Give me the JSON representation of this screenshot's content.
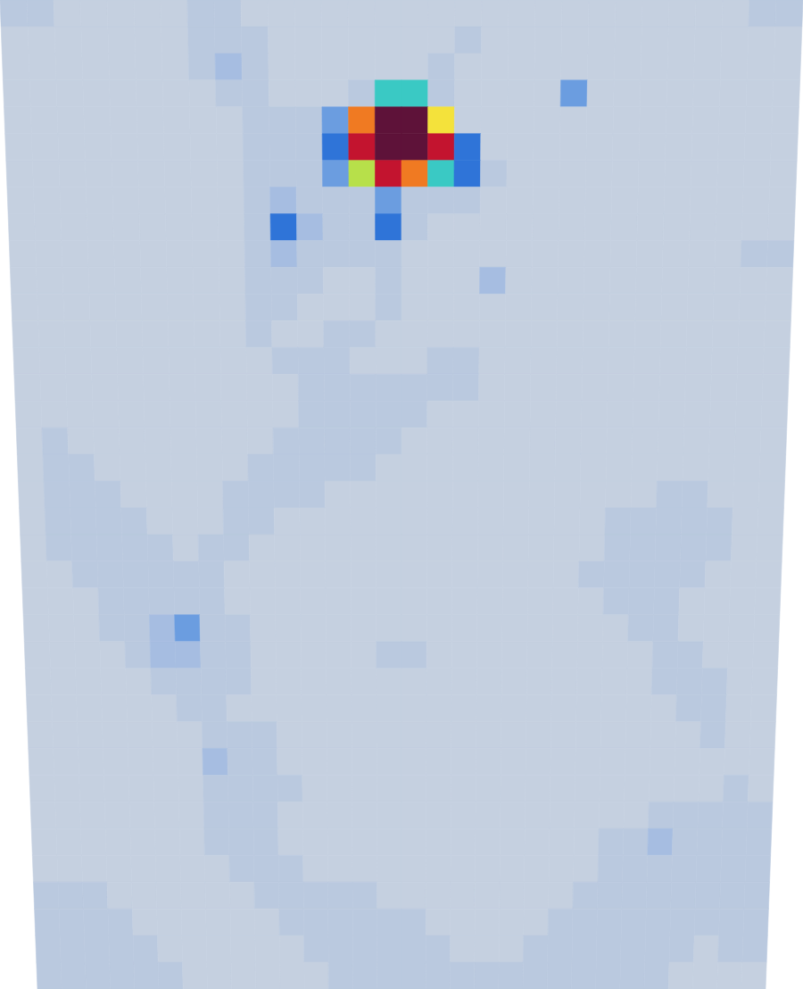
{
  "chart_data": {
    "type": "heatmap",
    "tick_labels": false,
    "zlim": [
      0,
      10
    ],
    "cells": [
      [
        1,
        1,
        0,
        0,
        0,
        0,
        0,
        1,
        1,
        0,
        0,
        0,
        0,
        0,
        0,
        0,
        0,
        0,
        0,
        0,
        0,
        0,
        0,
        0,
        0,
        0,
        0,
        0,
        1,
        1
      ],
      [
        0,
        0,
        0,
        0,
        0,
        0,
        0,
        1,
        1,
        1,
        0,
        0,
        0,
        0,
        0,
        0,
        0,
        1,
        0,
        0,
        0,
        0,
        0,
        0,
        0,
        0,
        0,
        0,
        0,
        0
      ],
      [
        0,
        0,
        0,
        0,
        0,
        0,
        0,
        1,
        2,
        1,
        0,
        0,
        0,
        0,
        0,
        0,
        1,
        0,
        0,
        0,
        0,
        0,
        0,
        0,
        0,
        0,
        0,
        0,
        0,
        0
      ],
      [
        0,
        0,
        0,
        0,
        0,
        0,
        0,
        0,
        1,
        1,
        0,
        0,
        0,
        1,
        5,
        5,
        1,
        0,
        0,
        0,
        0,
        3,
        0,
        0,
        0,
        0,
        0,
        0,
        0,
        0
      ],
      [
        0,
        0,
        0,
        0,
        0,
        0,
        0,
        0,
        0,
        1,
        1,
        1,
        3,
        8,
        10,
        10,
        7,
        0,
        0,
        0,
        0,
        0,
        0,
        0,
        0,
        0,
        0,
        0,
        0,
        0
      ],
      [
        0,
        0,
        0,
        0,
        0,
        0,
        0,
        0,
        0,
        1,
        1,
        1,
        4,
        9,
        10,
        10,
        9,
        4,
        0,
        0,
        0,
        0,
        0,
        0,
        0,
        0,
        0,
        0,
        0,
        0
      ],
      [
        0,
        0,
        0,
        0,
        0,
        0,
        0,
        0,
        0,
        1,
        1,
        1,
        3,
        6,
        9,
        8,
        5,
        4,
        1,
        0,
        0,
        0,
        0,
        0,
        0,
        0,
        0,
        0,
        0,
        0
      ],
      [
        0,
        0,
        0,
        0,
        0,
        0,
        0,
        0,
        0,
        1,
        2,
        1,
        1,
        1,
        3,
        1,
        1,
        1,
        0,
        0,
        0,
        0,
        0,
        0,
        0,
        0,
        0,
        0,
        0,
        0
      ],
      [
        0,
        0,
        0,
        0,
        0,
        0,
        0,
        0,
        0,
        1,
        4,
        2,
        1,
        1,
        4,
        1,
        0,
        0,
        0,
        0,
        0,
        0,
        0,
        0,
        0,
        0,
        0,
        0,
        0,
        0
      ],
      [
        0,
        0,
        0,
        0,
        0,
        0,
        0,
        0,
        0,
        1,
        2,
        1,
        1,
        1,
        1,
        0,
        0,
        0,
        0,
        0,
        0,
        0,
        0,
        0,
        0,
        0,
        0,
        0,
        1,
        1
      ],
      [
        0,
        0,
        0,
        0,
        0,
        0,
        0,
        0,
        0,
        1,
        1,
        1,
        0,
        0,
        1,
        0,
        0,
        0,
        2,
        0,
        0,
        0,
        0,
        0,
        0,
        0,
        0,
        0,
        0,
        0
      ],
      [
        0,
        0,
        0,
        0,
        0,
        0,
        0,
        0,
        0,
        1,
        1,
        0,
        0,
        0,
        1,
        0,
        0,
        0,
        0,
        0,
        0,
        0,
        0,
        0,
        0,
        0,
        0,
        0,
        0,
        0
      ],
      [
        0,
        0,
        0,
        0,
        0,
        0,
        0,
        0,
        0,
        1,
        0,
        0,
        1,
        1,
        0,
        0,
        0,
        0,
        0,
        0,
        0,
        0,
        0,
        0,
        0,
        0,
        0,
        0,
        0,
        0
      ],
      [
        0,
        0,
        0,
        0,
        0,
        0,
        0,
        0,
        0,
        0,
        1,
        1,
        1,
        0,
        0,
        0,
        1,
        1,
        0,
        0,
        0,
        0,
        0,
        0,
        0,
        0,
        0,
        0,
        0,
        0
      ],
      [
        0,
        0,
        0,
        0,
        0,
        0,
        0,
        0,
        0,
        0,
        0,
        1,
        1,
        1,
        1,
        1,
        1,
        1,
        0,
        0,
        0,
        0,
        0,
        0,
        0,
        0,
        0,
        0,
        0,
        0
      ],
      [
        0,
        0,
        0,
        0,
        0,
        0,
        0,
        0,
        0,
        0,
        0,
        1,
        1,
        1,
        1,
        1,
        0,
        0,
        0,
        0,
        0,
        0,
        0,
        0,
        0,
        0,
        0,
        0,
        0,
        0
      ],
      [
        0,
        1,
        0,
        0,
        0,
        0,
        0,
        0,
        0,
        0,
        1,
        1,
        1,
        1,
        1,
        0,
        0,
        0,
        0,
        0,
        0,
        0,
        0,
        0,
        0,
        0,
        0,
        0,
        0,
        0
      ],
      [
        0,
        1,
        1,
        0,
        0,
        0,
        0,
        0,
        0,
        1,
        1,
        1,
        1,
        1,
        0,
        0,
        0,
        0,
        0,
        0,
        0,
        0,
        0,
        0,
        0,
        0,
        0,
        0,
        0,
        0
      ],
      [
        0,
        1,
        1,
        1,
        0,
        0,
        0,
        0,
        1,
        1,
        1,
        1,
        0,
        0,
        0,
        0,
        0,
        0,
        0,
        0,
        0,
        0,
        0,
        0,
        0,
        1,
        1,
        0,
        0,
        0
      ],
      [
        0,
        1,
        1,
        1,
        1,
        0,
        0,
        0,
        1,
        1,
        0,
        0,
        0,
        0,
        0,
        0,
        0,
        0,
        0,
        0,
        0,
        0,
        0,
        1,
        1,
        1,
        1,
        1,
        0,
        0
      ],
      [
        0,
        1,
        1,
        1,
        1,
        1,
        0,
        1,
        1,
        0,
        0,
        0,
        0,
        0,
        0,
        0,
        0,
        0,
        0,
        0,
        0,
        0,
        0,
        1,
        1,
        1,
        1,
        1,
        0,
        0
      ],
      [
        0,
        0,
        1,
        1,
        1,
        1,
        1,
        1,
        0,
        0,
        0,
        0,
        0,
        0,
        0,
        0,
        0,
        0,
        0,
        0,
        0,
        0,
        1,
        1,
        1,
        1,
        1,
        0,
        0,
        0
      ],
      [
        0,
        0,
        0,
        1,
        1,
        1,
        1,
        1,
        0,
        0,
        0,
        0,
        0,
        0,
        0,
        0,
        0,
        0,
        0,
        0,
        0,
        0,
        0,
        1,
        1,
        1,
        0,
        0,
        0,
        0
      ],
      [
        0,
        0,
        0,
        1,
        1,
        2,
        3,
        1,
        1,
        0,
        0,
        0,
        0,
        0,
        0,
        0,
        0,
        0,
        0,
        0,
        0,
        0,
        0,
        0,
        1,
        1,
        0,
        0,
        0,
        0
      ],
      [
        0,
        0,
        0,
        0,
        1,
        2,
        2,
        1,
        1,
        0,
        0,
        0,
        0,
        0,
        1,
        1,
        0,
        0,
        0,
        0,
        0,
        0,
        0,
        0,
        0,
        1,
        1,
        0,
        0,
        0
      ],
      [
        0,
        0,
        0,
        0,
        0,
        1,
        1,
        1,
        1,
        0,
        0,
        0,
        0,
        0,
        0,
        0,
        0,
        0,
        0,
        0,
        0,
        0,
        0,
        0,
        0,
        1,
        1,
        1,
        0,
        0
      ],
      [
        0,
        0,
        0,
        0,
        0,
        0,
        1,
        1,
        0,
        0,
        0,
        0,
        0,
        0,
        0,
        0,
        0,
        0,
        0,
        0,
        0,
        0,
        0,
        0,
        0,
        0,
        1,
        1,
        0,
        0
      ],
      [
        0,
        0,
        0,
        0,
        0,
        0,
        0,
        1,
        1,
        1,
        0,
        0,
        0,
        0,
        0,
        0,
        0,
        0,
        0,
        0,
        0,
        0,
        0,
        0,
        0,
        0,
        0,
        1,
        0,
        0
      ],
      [
        0,
        0,
        0,
        0,
        0,
        0,
        0,
        2,
        1,
        1,
        0,
        0,
        0,
        0,
        0,
        0,
        0,
        0,
        0,
        0,
        0,
        0,
        0,
        0,
        0,
        0,
        0,
        0,
        0,
        0
      ],
      [
        0,
        0,
        0,
        0,
        0,
        0,
        0,
        1,
        1,
        1,
        1,
        0,
        0,
        0,
        0,
        0,
        0,
        0,
        0,
        0,
        0,
        0,
        0,
        0,
        0,
        0,
        0,
        0,
        1,
        0
      ],
      [
        0,
        0,
        0,
        0,
        0,
        0,
        0,
        1,
        1,
        1,
        0,
        0,
        0,
        0,
        0,
        0,
        0,
        0,
        0,
        0,
        0,
        0,
        0,
        0,
        0,
        1,
        1,
        1,
        1,
        1
      ],
      [
        0,
        0,
        0,
        0,
        0,
        0,
        0,
        1,
        1,
        1,
        0,
        0,
        0,
        0,
        0,
        0,
        0,
        0,
        0,
        0,
        0,
        0,
        0,
        1,
        1,
        2,
        1,
        1,
        1,
        1
      ],
      [
        0,
        0,
        0,
        0,
        0,
        0,
        0,
        0,
        1,
        1,
        1,
        0,
        0,
        0,
        0,
        0,
        0,
        0,
        0,
        0,
        0,
        0,
        0,
        1,
        1,
        1,
        1,
        1,
        1,
        1
      ],
      [
        1,
        1,
        1,
        0,
        0,
        0,
        0,
        0,
        0,
        1,
        1,
        1,
        1,
        1,
        0,
        0,
        0,
        0,
        0,
        0,
        0,
        0,
        1,
        1,
        1,
        1,
        1,
        1,
        1,
        1
      ],
      [
        1,
        1,
        1,
        1,
        0,
        0,
        0,
        0,
        0,
        0,
        1,
        1,
        1,
        1,
        1,
        1,
        0,
        0,
        0,
        0,
        0,
        1,
        1,
        1,
        1,
        1,
        1,
        1,
        1,
        1
      ],
      [
        1,
        1,
        1,
        1,
        1,
        0,
        0,
        0,
        0,
        0,
        0,
        1,
        1,
        1,
        1,
        1,
        1,
        0,
        0,
        0,
        1,
        1,
        1,
        1,
        1,
        1,
        1,
        0,
        1,
        1
      ],
      [
        1,
        1,
        1,
        1,
        1,
        1,
        0,
        0,
        0,
        0,
        0,
        0,
        1,
        1,
        1,
        1,
        1,
        1,
        1,
        1,
        1,
        1,
        1,
        1,
        1,
        1,
        0,
        0,
        0,
        0
      ]
    ]
  }
}
